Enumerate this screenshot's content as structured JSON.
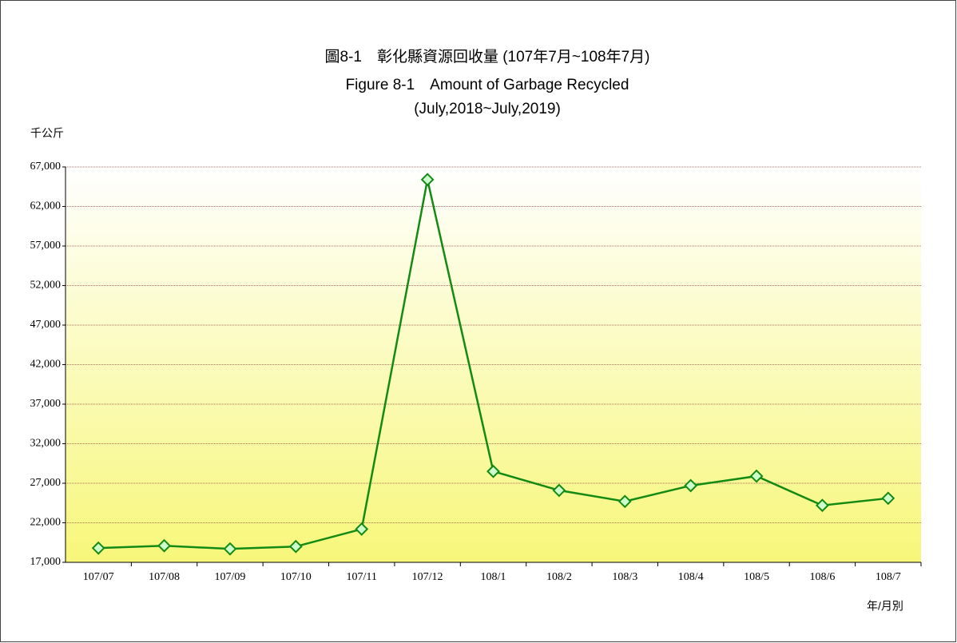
{
  "chart_data": {
    "type": "line",
    "title_lines": [
      "圖8-1　彰化縣資源回收量 (107年7月~108年7月)",
      "Figure 8-1　Amount of Garbage Recycled",
      "(July,2018~July,2019)"
    ],
    "y_label": "千公斤",
    "x_label": "年/月別",
    "categories": [
      "107/07",
      "107/08",
      "107/09",
      "107/10",
      "107/11",
      "107/12",
      "108/1",
      "108/2",
      "108/3",
      "108/4",
      "108/5",
      "108/6",
      "108/7"
    ],
    "series": [
      {
        "name": "Amount",
        "color": "#138a13",
        "values": [
          18800,
          19100,
          18700,
          19000,
          21200,
          65400,
          28500,
          26100,
          24700,
          26700,
          27900,
          24200,
          25100
        ]
      }
    ],
    "ylim": [
      17000,
      67000
    ],
    "yticks": [
      {
        "value": 17000,
        "label": "17,000"
      },
      {
        "value": 22000,
        "label": "22,000"
      },
      {
        "value": 27000,
        "label": "27,000"
      },
      {
        "value": 32000,
        "label": "32,000"
      },
      {
        "value": 37000,
        "label": "37,000"
      },
      {
        "value": 42000,
        "label": "42,000"
      },
      {
        "value": 47000,
        "label": "47,000"
      },
      {
        "value": 52000,
        "label": "52,000"
      },
      {
        "value": 57000,
        "label": "57,000"
      },
      {
        "value": 62000,
        "label": "62,000"
      },
      {
        "value": 67000,
        "label": "67,000"
      }
    ],
    "grid": true
  }
}
